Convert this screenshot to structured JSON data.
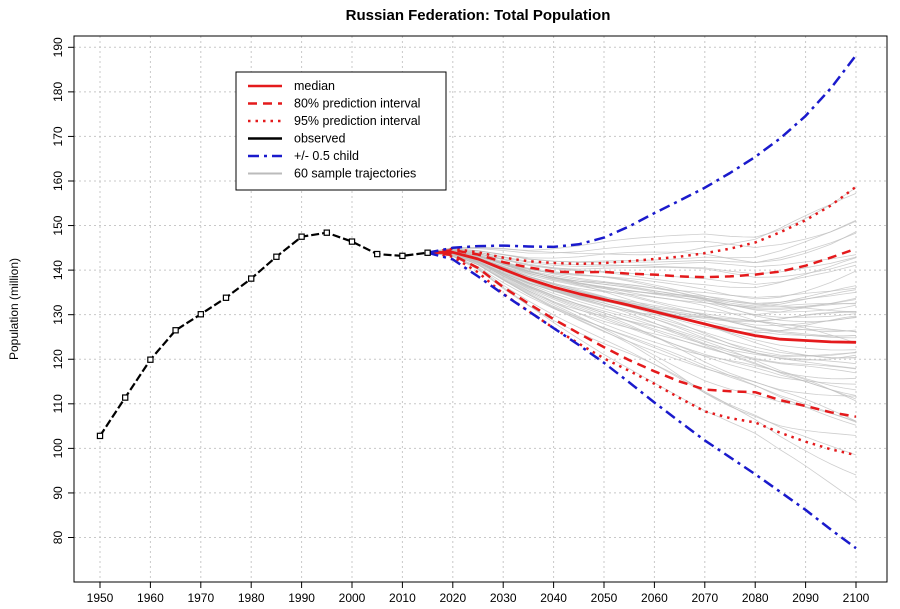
{
  "chart_data": {
    "type": "line",
    "title": "Russian Federation: Total Population",
    "xlabel": "",
    "ylabel": "Population (million)",
    "xlim": [
      1950,
      2100
    ],
    "ylim": [
      75,
      192
    ],
    "x_ticks": [
      1950,
      1960,
      1970,
      1980,
      1990,
      2000,
      2010,
      2020,
      2030,
      2040,
      2050,
      2060,
      2070,
      2080,
      2090,
      2100
    ],
    "y_ticks": [
      80,
      90,
      100,
      110,
      120,
      130,
      140,
      150,
      160,
      170,
      180,
      190
    ],
    "grid": true,
    "legend_position": "top-left",
    "legend": [
      {
        "label": "median",
        "color": "#e41a1c",
        "style": "solid"
      },
      {
        "label": "80% prediction interval",
        "color": "#e41a1c",
        "style": "dashed"
      },
      {
        "label": "95% prediction interval",
        "color": "#e41a1c",
        "style": "dotted"
      },
      {
        "label": "observed",
        "color": "#000000",
        "style": "solid"
      },
      {
        "label": "+/- 0.5 child",
        "color": "#1a1acc",
        "style": "dotdash"
      },
      {
        "label": "60 sample trajectories",
        "color": "#bbbbbb",
        "style": "solid"
      }
    ],
    "series": [
      {
        "name": "observed",
        "color": "#000000",
        "x": [
          1950,
          1955,
          1960,
          1965,
          1970,
          1975,
          1980,
          1985,
          1990,
          1995,
          2000,
          2005,
          2010,
          2015
        ],
        "y": [
          102.8,
          111.4,
          119.9,
          126.5,
          130.1,
          133.8,
          138.1,
          143.0,
          147.5,
          148.4,
          146.4,
          143.6,
          143.2,
          143.9
        ]
      },
      {
        "name": "median",
        "color": "#e41a1c",
        "x": [
          2015,
          2020,
          2025,
          2030,
          2035,
          2040,
          2045,
          2050,
          2055,
          2060,
          2065,
          2070,
          2075,
          2080,
          2085,
          2090,
          2095,
          2100
        ],
        "y": [
          143.9,
          144.0,
          142.5,
          140.2,
          138.0,
          136.2,
          134.7,
          133.4,
          132.1,
          130.7,
          129.3,
          127.9,
          126.5,
          125.3,
          124.5,
          124.2,
          123.9,
          123.8
        ]
      },
      {
        "name": "80% upper",
        "color": "#e41a1c",
        "x": [
          2015,
          2020,
          2025,
          2030,
          2035,
          2040,
          2045,
          2050,
          2055,
          2060,
          2065,
          2070,
          2075,
          2080,
          2085,
          2090,
          2095,
          2100
        ],
        "y": [
          143.9,
          144.5,
          143.5,
          141.8,
          140.6,
          139.7,
          139.5,
          139.6,
          139.2,
          139.0,
          138.6,
          138.4,
          138.6,
          139.0,
          139.7,
          141.0,
          142.8,
          144.8
        ]
      },
      {
        "name": "80% lower",
        "color": "#e41a1c",
        "x": [
          2015,
          2020,
          2025,
          2030,
          2035,
          2040,
          2045,
          2050,
          2055,
          2060,
          2065,
          2070,
          2075,
          2080,
          2085,
          2090,
          2095,
          2100
        ],
        "y": [
          143.9,
          143.4,
          140.5,
          136.2,
          132.5,
          129.0,
          125.8,
          122.7,
          119.8,
          117.3,
          115.0,
          113.2,
          112.8,
          112.6,
          110.8,
          109.5,
          108.1,
          107.1
        ]
      },
      {
        "name": "95% upper",
        "color": "#e41a1c",
        "x": [
          2015,
          2020,
          2025,
          2030,
          2035,
          2040,
          2045,
          2050,
          2055,
          2060,
          2065,
          2070,
          2075,
          2080,
          2085,
          2090,
          2095,
          2100
        ],
        "y": [
          143.9,
          144.8,
          144.0,
          142.8,
          142.0,
          141.6,
          141.4,
          141.6,
          142.0,
          142.5,
          143.0,
          143.8,
          144.8,
          146.2,
          148.5,
          151.2,
          154.5,
          158.7
        ]
      },
      {
        "name": "95% lower",
        "color": "#e41a1c",
        "x": [
          2015,
          2020,
          2025,
          2030,
          2035,
          2040,
          2045,
          2050,
          2055,
          2060,
          2065,
          2070,
          2075,
          2080,
          2085,
          2090,
          2095,
          2100
        ],
        "y": [
          143.9,
          143.0,
          139.5,
          134.7,
          130.8,
          127.0,
          123.5,
          120.2,
          117.4,
          114.5,
          111.3,
          108.3,
          106.8,
          105.8,
          103.5,
          101.5,
          99.8,
          98.5
        ]
      },
      {
        "name": "+/- 0.5 child upper",
        "color": "#1a1acc",
        "x": [
          2015,
          2020,
          2025,
          2030,
          2035,
          2040,
          2045,
          2050,
          2055,
          2060,
          2065,
          2070,
          2075,
          2080,
          2085,
          2090,
          2095,
          2100
        ],
        "y": [
          143.9,
          145.0,
          145.4,
          145.5,
          145.3,
          145.2,
          145.8,
          147.3,
          149.8,
          152.8,
          155.6,
          158.5,
          161.8,
          165.4,
          169.6,
          174.6,
          180.8,
          188.2
        ]
      },
      {
        "name": "+/- 0.5 child lower",
        "color": "#1a1acc",
        "x": [
          2015,
          2020,
          2025,
          2030,
          2035,
          2040,
          2045,
          2050,
          2055,
          2060,
          2065,
          2070,
          2075,
          2080,
          2085,
          2090,
          2095,
          2100
        ],
        "y": [
          143.9,
          142.4,
          138.6,
          134.6,
          130.8,
          127.0,
          123.2,
          119.2,
          114.8,
          110.3,
          106.0,
          101.8,
          98.0,
          94.2,
          90.2,
          86.2,
          81.8,
          77.6
        ]
      }
    ]
  }
}
